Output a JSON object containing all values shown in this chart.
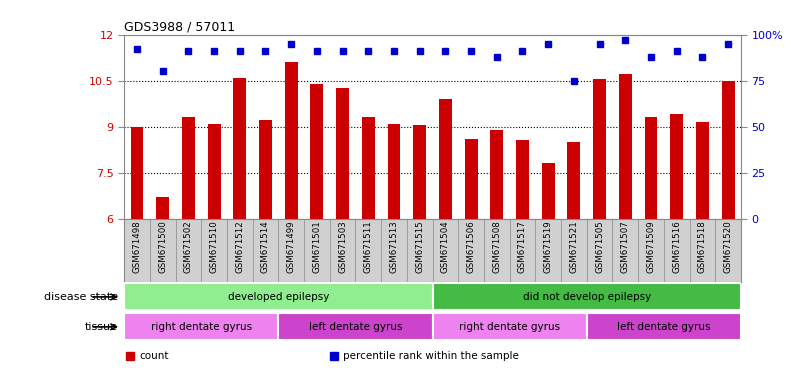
{
  "title": "GDS3988 / 57011",
  "samples": [
    "GSM671498",
    "GSM671500",
    "GSM671502",
    "GSM671510",
    "GSM671512",
    "GSM671514",
    "GSM671499",
    "GSM671501",
    "GSM671503",
    "GSM671511",
    "GSM671513",
    "GSM671515",
    "GSM671504",
    "GSM671506",
    "GSM671508",
    "GSM671517",
    "GSM671519",
    "GSM671521",
    "GSM671505",
    "GSM671507",
    "GSM671509",
    "GSM671516",
    "GSM671518",
    "GSM671520"
  ],
  "bar_values": [
    9.0,
    6.7,
    9.3,
    9.1,
    10.6,
    9.2,
    11.1,
    10.4,
    10.25,
    9.3,
    9.1,
    9.05,
    9.9,
    8.6,
    8.9,
    8.55,
    7.8,
    8.5,
    10.55,
    10.7,
    9.3,
    9.4,
    9.15,
    10.5
  ],
  "percentile_values": [
    92,
    80,
    91,
    91,
    91,
    91,
    95,
    91,
    91,
    91,
    91,
    91,
    91,
    91,
    88,
    91,
    95,
    75,
    95,
    97,
    88,
    91,
    88,
    95
  ],
  "bar_color": "#cc0000",
  "dot_color": "#0000cc",
  "ylim": [
    6,
    12
  ],
  "yticks_left": [
    6,
    7.5,
    9,
    10.5,
    12
  ],
  "ytick_labels_left": [
    "6",
    "7.5",
    "9",
    "10.5",
    "12"
  ],
  "ytick_labels_right": [
    "0",
    "25",
    "50",
    "75",
    "100%"
  ],
  "disease_groups": [
    {
      "label": "developed epilepsy",
      "start": 0,
      "end": 12,
      "color": "#90EE90"
    },
    {
      "label": "did not develop epilepsy",
      "start": 12,
      "end": 24,
      "color": "#44BB44"
    }
  ],
  "tissue_groups": [
    {
      "label": "right dentate gyrus",
      "start": 0,
      "end": 6,
      "color": "#EE82EE"
    },
    {
      "label": "left dentate gyrus",
      "start": 6,
      "end": 12,
      "color": "#CC44CC"
    },
    {
      "label": "right dentate gyrus",
      "start": 12,
      "end": 18,
      "color": "#EE82EE"
    },
    {
      "label": "left dentate gyrus",
      "start": 18,
      "end": 24,
      "color": "#CC44CC"
    }
  ],
  "left_label_color": "#cc0000",
  "right_label_color": "#0000cc",
  "bg_color": "#ffffff",
  "bar_width": 0.5,
  "title_fontsize": 9,
  "xlabels_bg": "#d0d0d0",
  "spine_color": "#888888",
  "dot_size": 5
}
